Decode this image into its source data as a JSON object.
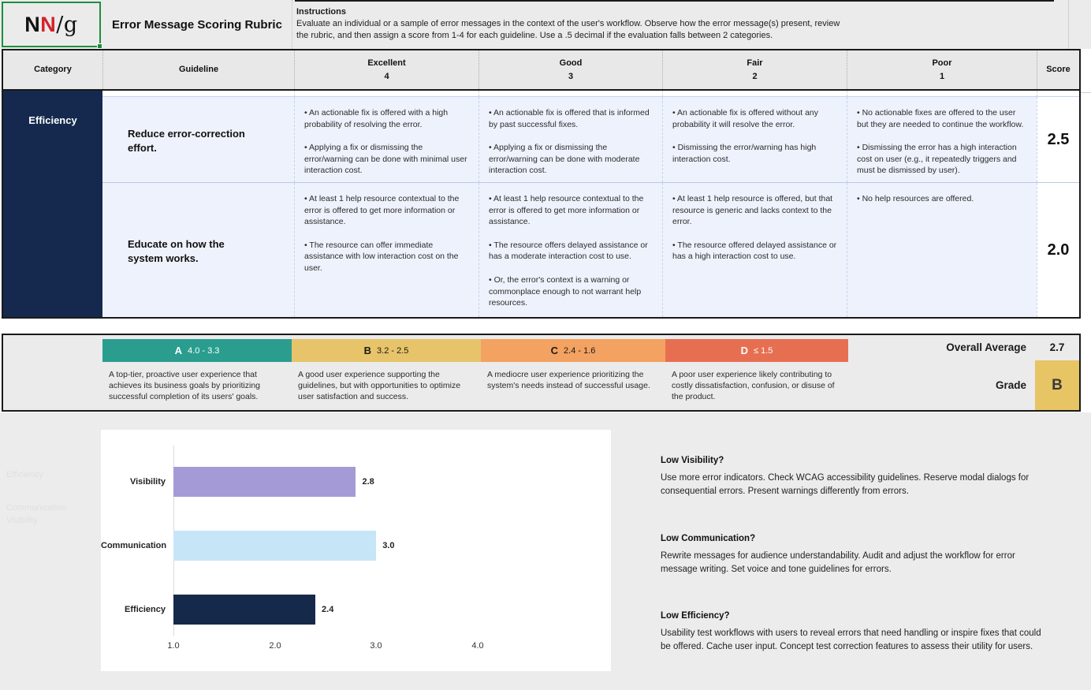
{
  "header": {
    "logo": {
      "n1": "N",
      "n2": "N",
      "slash_g": "/g",
      "red": "#d2232a"
    },
    "title": "Error Message Scoring Rubric",
    "instructions_label": "Instructions",
    "instructions_text": "Evaluate an individual or a sample of error messages in the context of the user's workflow. Observe how the error message(s) present, review the rubric, and then assign a score from 1-4 for each guideline. Use a .5 decimal if the evaluation falls between 2 categories."
  },
  "table": {
    "headers": {
      "category": "Category",
      "guideline": "Guideline",
      "score": "Score",
      "ratings": [
        {
          "label": "Excellent",
          "value": "4"
        },
        {
          "label": "Good",
          "value": "3"
        },
        {
          "label": "Fair",
          "value": "2"
        },
        {
          "label": "Poor",
          "value": "1"
        }
      ]
    },
    "category": "Efficiency",
    "category_color": "#14294d",
    "rows": [
      {
        "guideline": "Reduce error-correction effort.",
        "excellent": "• An actionable fix is offered with a high probability of resolving the error.\n\n• Applying a fix or dismissing the error/warning can be done with minimal user interaction cost.",
        "good": "• An actionable fix is offered that is informed by past successful fixes.\n\n• Applying a fix or dismissing the error/warning can be done with moderate interaction cost.",
        "fair": "• An actionable fix is offered without any probability it will resolve the error.\n\n• Dismissing the error/warning has high interaction cost.",
        "poor": "• No actionable fixes are offered to the user but they are needed to continue the workflow.\n\n• Dismissing the error has a high interaction cost on user (e.g., it repeatedly triggers and must be dismissed by user).",
        "score": "2.5"
      },
      {
        "guideline": "Educate on how the system works.",
        "excellent": "• At least 1 help resource contextual to the error is offered to get more information or assistance.\n\n• The resource can offer immediate assistance with low interaction cost on the user.",
        "good": "• At least 1 help resource contextual to the error is offered to get more information or assistance.\n\n• The resource offers delayed assistance or has a moderate interaction cost to use.\n\n• Or, the error's context is a warning or commonplace enough to not warrant help resources.",
        "fair": "• At least 1 help resource is offered, but that resource is generic and lacks context to the error.\n\n• The resource offered delayed assistance or has a high interaction cost to use.",
        "poor": "• No help resources are offered.",
        "score": "2.0"
      }
    ]
  },
  "grading": {
    "grades": [
      {
        "letter": "A",
        "range": "4.0 - 3.3",
        "color": "#2a9d8f",
        "text_color": "#ffffff",
        "description": "A top-tier, proactive user experience that achieves its business goals by prioritizing successful completion of its users' goals."
      },
      {
        "letter": "B",
        "range": "3.2 - 2.5",
        "color": "#e7c46a",
        "text_color": "#1a1a1a",
        "description": "A good user experience supporting the guidelines, but with opportunities to optimize user satisfaction and success."
      },
      {
        "letter": "C",
        "range": "2.4 - 1.6",
        "color": "#f4a261",
        "text_color": "#1a1a1a",
        "description": "A mediocre user experience prioritizing the system's needs instead of successful usage."
      },
      {
        "letter": "D",
        "range": "≤ 1.5",
        "color": "#e76f51",
        "text_color": "#ffffff",
        "description": "A poor user experience likely contributing to costly dissatisfaction, confusion, or disuse of the product."
      }
    ],
    "overall_average_label": "Overall Average",
    "overall_average_value": "2.7",
    "grade_label": "Grade",
    "grade_value": "B",
    "grade_box_color": "#e7c464"
  },
  "chart_data": {
    "type": "bar",
    "orientation": "horizontal",
    "categories": [
      "Visibility",
      "Communication",
      "Efficiency"
    ],
    "values": [
      2.8,
      3.0,
      2.4
    ],
    "labels": [
      "2.8",
      "3.0",
      "2.4"
    ],
    "colors": [
      "#a49bd6",
      "#c6e6f8",
      "#15294b"
    ],
    "x_ticks": [
      "1.0",
      "2.0",
      "3.0",
      "4.0"
    ],
    "xlim": [
      1.0,
      4.0
    ],
    "grid": false,
    "title": "",
    "xlabel": "",
    "ylabel": ""
  },
  "recommendations": [
    {
      "heading": "Low Visibility?",
      "body": "Use more error indicators. Check WCAG accessibility guidelines. Reserve modal dialogs for consequential errors. Present warnings differently from errors."
    },
    {
      "heading": "Low Communication?",
      "body": "Rewrite messages for audience understandability. Audit and adjust the workflow for error message writing. Set voice and tone guidelines for errors."
    },
    {
      "heading": "Low Efficiency?",
      "body": "Usability test workflows with users to reveal errors that need handling or inspire fixes that could be offered. Cache user input. Concept test correction features to assess their utility for users."
    }
  ],
  "ghost_labels": [
    "Efficiency",
    "Communication",
    "Visibility"
  ]
}
